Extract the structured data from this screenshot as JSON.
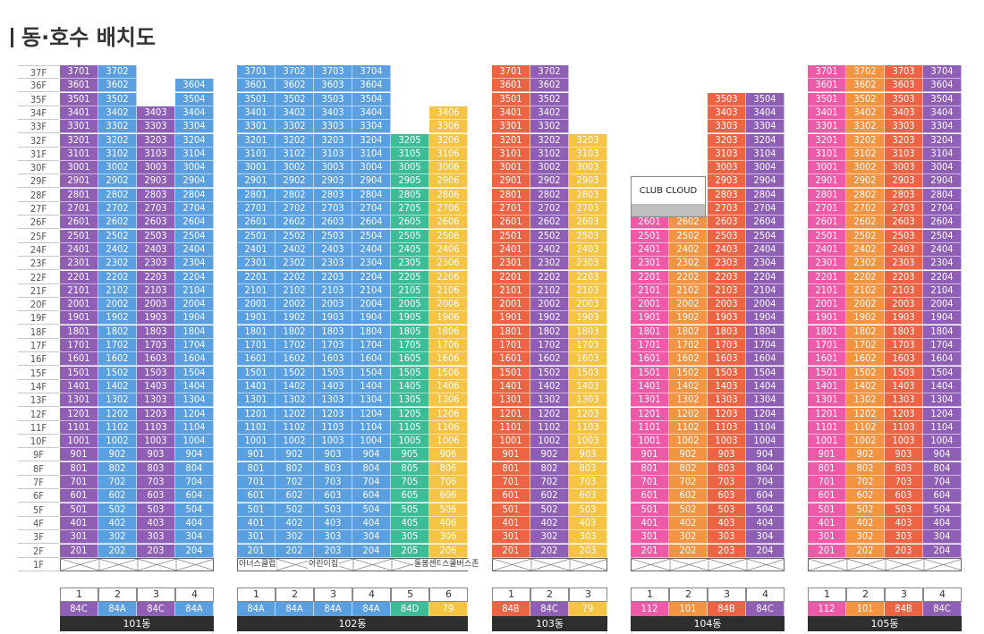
{
  "page_title": "동·호수 배치도",
  "colors": {
    "84C": "#8e5fb4",
    "84A": "#5a9fe0",
    "84D": "#3dbd96",
    "79": "#f6c445",
    "84B": "#ec6444",
    "112": "#ee5aa7",
    "101": "#f39443"
  },
  "floors": {
    "top": 37,
    "bottom": 2
  },
  "ground_label": "1F",
  "club_label": "CLUB CLOUD",
  "buildings": [
    {
      "name": "101동",
      "lines": [
        {
          "no": "1",
          "type": "84C",
          "top": 37
        },
        {
          "no": "2",
          "type": "84A",
          "top": 37
        },
        {
          "no": "3",
          "type": "84C",
          "top": 34
        },
        {
          "no": "4",
          "type": "84A",
          "top": 36
        }
      ],
      "ground": []
    },
    {
      "name": "102동",
      "lines": [
        {
          "no": "1",
          "type": "84A",
          "top": 37
        },
        {
          "no": "2",
          "type": "84A",
          "top": 37
        },
        {
          "no": "3",
          "type": "84A",
          "top": 37
        },
        {
          "no": "4",
          "type": "84A",
          "top": 37
        },
        {
          "no": "5",
          "type": "84D",
          "top": 32
        },
        {
          "no": "6",
          "type": "79",
          "top": 34
        }
      ],
      "ground": [
        "아너스클럽",
        "어린이집",
        "돌봄센터",
        "스쿨버스존"
      ]
    },
    {
      "name": "103동",
      "lines": [
        {
          "no": "1",
          "type": "84B",
          "top": 37
        },
        {
          "no": "2",
          "type": "84C",
          "top": 37
        },
        {
          "no": "3",
          "type": "79",
          "top": 32
        }
      ],
      "ground": []
    },
    {
      "name": "104동",
      "lines": [
        {
          "no": "1",
          "type": "112",
          "top": 26
        },
        {
          "no": "2",
          "type": "101",
          "top": 26
        },
        {
          "no": "3",
          "type": "84B",
          "top": 35
        },
        {
          "no": "4",
          "type": "84C",
          "top": 35
        }
      ],
      "ground": []
    },
    {
      "name": "105동",
      "lines": [
        {
          "no": "1",
          "type": "112",
          "top": 37
        },
        {
          "no": "2",
          "type": "101",
          "top": 37
        },
        {
          "no": "3",
          "type": "84B",
          "top": 37
        },
        {
          "no": "4",
          "type": "84C",
          "top": 37
        }
      ],
      "ground": []
    }
  ]
}
